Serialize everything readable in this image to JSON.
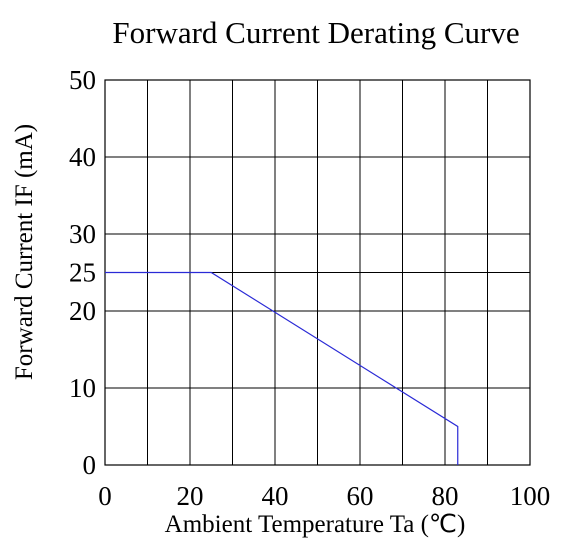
{
  "chart_data": {
    "type": "line",
    "title": "Forward Current Derating Curve",
    "xlabel": "Ambient Temperature Ta (℃)",
    "ylabel": "Forward Current IF (mA)",
    "xlim": [
      0,
      100
    ],
    "ylim": [
      0,
      50
    ],
    "x_ticks": [
      0,
      20,
      40,
      60,
      80,
      100
    ],
    "x_tick_labels": [
      "0",
      "20",
      "40",
      "60",
      "80",
      "100"
    ],
    "y_ticks": [
      0,
      10,
      20,
      25,
      30,
      40,
      50
    ],
    "y_tick_labels": [
      "0",
      "10",
      "20",
      "25",
      "30",
      "40",
      "50"
    ],
    "x_grid": [
      0,
      10,
      20,
      30,
      40,
      50,
      60,
      70,
      80,
      90,
      100
    ],
    "y_grid": [
      0,
      10,
      20,
      25,
      30,
      40,
      50
    ],
    "grid": true,
    "series": [
      {
        "color": "#2a2ad6",
        "x": [
          0,
          25,
          83,
          83
        ],
        "y": [
          25,
          25,
          5,
          0
        ]
      }
    ]
  }
}
